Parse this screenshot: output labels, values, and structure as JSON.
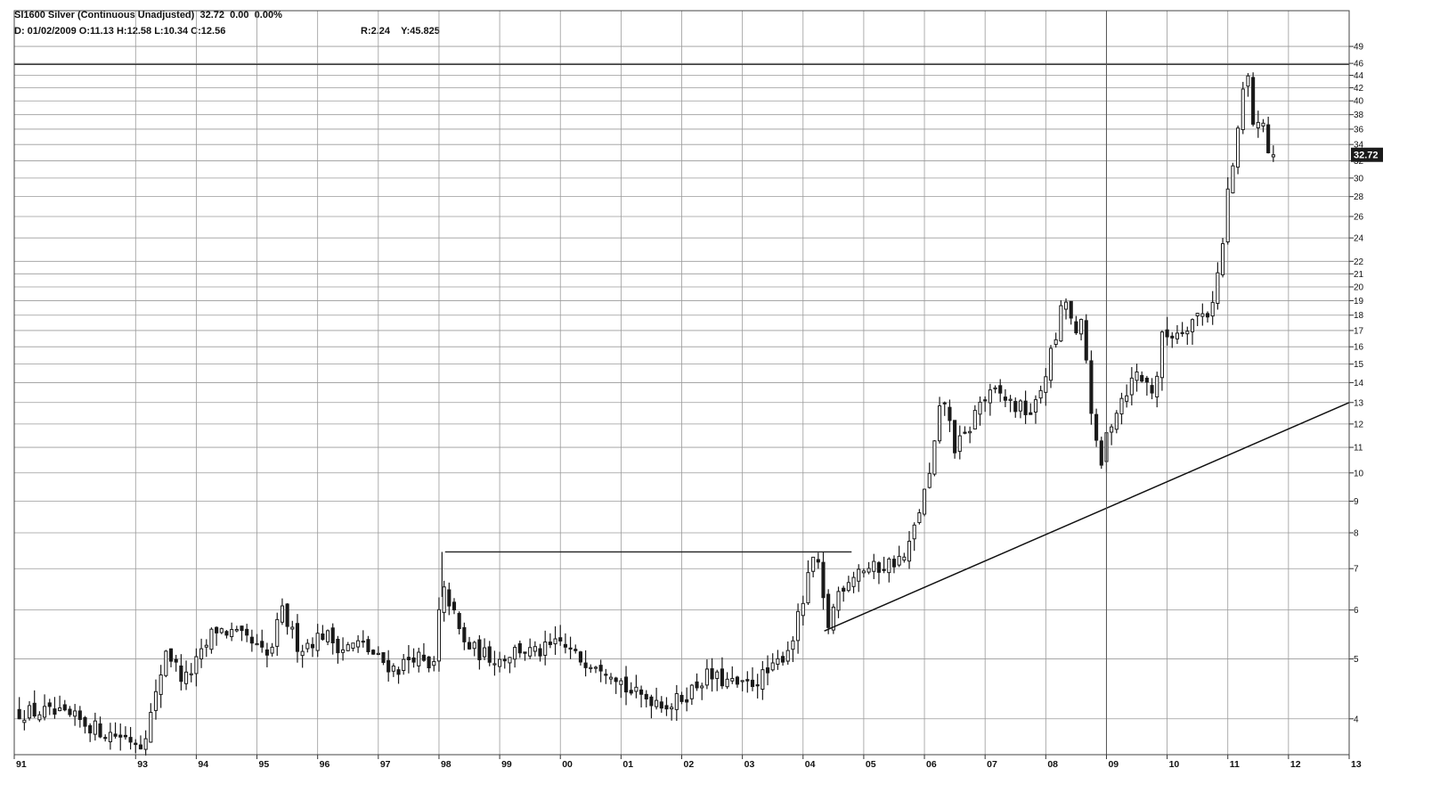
{
  "header": {
    "title": "SI1600 Silver (Continuous Unadjusted)",
    "last": "32.72",
    "change": "0.00",
    "change_pct": "0.00%",
    "date_label": "D: 01/02/2009",
    "open_label": "O:11.13",
    "high_label": "H:12.58",
    "low_label": "L:10.34",
    "close_label": "C:12.56",
    "r_label": "R:2.24",
    "y_label": "Y:45.825"
  },
  "colors": {
    "candle": "#1a1a1a",
    "grid": "#9a9a9a",
    "badge": "#1a1a1a",
    "background": "#ffffff"
  },
  "chart_data": {
    "type": "candlestick",
    "title": "SI1600 Silver (Continuous Unadjusted)",
    "scale": "log",
    "ylim": [
      3.5,
      50
    ],
    "xlim": [
      1991,
      2013
    ],
    "grid": true,
    "last_price": "32.72",
    "y_ticks": [
      "4",
      "5",
      "6",
      "7",
      "8",
      "9",
      "10",
      "11",
      "12",
      "13",
      "14",
      "15",
      "16",
      "17",
      "18",
      "19",
      "20",
      "21",
      "22",
      "24",
      "26",
      "28",
      "30",
      "32",
      "34",
      "36",
      "38",
      "40",
      "42",
      "44",
      "46",
      "49"
    ],
    "x_ticks": [
      "91",
      "93",
      "94",
      "95",
      "96",
      "97",
      "98",
      "99",
      "00",
      "01",
      "02",
      "03",
      "04",
      "05",
      "06",
      "07",
      "08",
      "09",
      "10",
      "11",
      "12",
      "13"
    ],
    "x_tick_years": [
      1991,
      1993,
      1994,
      1995,
      1996,
      1997,
      1998,
      1999,
      2000,
      2001,
      2002,
      2003,
      2004,
      2005,
      2006,
      2007,
      2008,
      2009,
      2010,
      2011,
      2012,
      2013
    ],
    "anchors": [
      [
        1991.0,
        4.1
      ],
      [
        1991.5,
        4.1
      ],
      [
        1992.0,
        4.0
      ],
      [
        1992.5,
        3.8
      ],
      [
        1992.8,
        3.75
      ],
      [
        1993.1,
        3.65
      ],
      [
        1993.3,
        4.2
      ],
      [
        1993.5,
        5.2
      ],
      [
        1993.8,
        4.6
      ],
      [
        1994.1,
        5.1
      ],
      [
        1994.3,
        5.6
      ],
      [
        1994.6,
        5.5
      ],
      [
        1994.9,
        5.3
      ],
      [
        1995.2,
        5.0
      ],
      [
        1995.4,
        6.0
      ],
      [
        1995.7,
        5.2
      ],
      [
        1996.1,
        5.5
      ],
      [
        1996.4,
        5.2
      ],
      [
        1996.7,
        5.3
      ],
      [
        1997.0,
        5.0
      ],
      [
        1997.3,
        4.8
      ],
      [
        1997.6,
        5.1
      ],
      [
        1997.9,
        4.7
      ],
      [
        1998.0,
        5.9
      ],
      [
        1998.1,
        6.5
      ],
      [
        1998.4,
        5.3
      ],
      [
        1998.7,
        5.1
      ],
      [
        1999.0,
        5.0
      ],
      [
        1999.3,
        5.2
      ],
      [
        1999.6,
        5.1
      ],
      [
        2000.0,
        5.3
      ],
      [
        2000.3,
        5.0
      ],
      [
        2000.6,
        4.95
      ],
      [
        2000.9,
        4.75
      ],
      [
        2001.1,
        4.45
      ],
      [
        2001.3,
        4.35
      ],
      [
        2001.6,
        4.3
      ],
      [
        2001.8,
        4.2
      ],
      [
        2002.1,
        4.4
      ],
      [
        2002.4,
        4.7
      ],
      [
        2002.7,
        4.6
      ],
      [
        2003.0,
        4.5
      ],
      [
        2003.2,
        4.6
      ],
      [
        2003.5,
        4.8
      ],
      [
        2003.8,
        5.3
      ],
      [
        2004.0,
        6.2
      ],
      [
        2004.2,
        7.5
      ],
      [
        2004.4,
        5.6
      ],
      [
        2004.6,
        6.5
      ],
      [
        2004.9,
        7.0
      ],
      [
        2005.2,
        7.0
      ],
      [
        2005.5,
        7.2
      ],
      [
        2005.7,
        7.3
      ],
      [
        2005.9,
        8.6
      ],
      [
        2006.1,
        10.0
      ],
      [
        2006.3,
        13.5
      ],
      [
        2006.5,
        11.0
      ],
      [
        2006.7,
        11.5
      ],
      [
        2006.9,
        13.0
      ],
      [
        2007.2,
        13.5
      ],
      [
        2007.5,
        12.8
      ],
      [
        2007.8,
        12.5
      ],
      [
        2007.9,
        13.5
      ],
      [
        2008.2,
        17.0
      ],
      [
        2008.3,
        19.5
      ],
      [
        2008.5,
        16.5
      ],
      [
        2008.6,
        17.5
      ],
      [
        2008.8,
        11.5
      ],
      [
        2008.9,
        10.0
      ],
      [
        2009.0,
        11.5
      ],
      [
        2009.2,
        13.0
      ],
      [
        2009.5,
        14.5
      ],
      [
        2009.8,
        13.5
      ],
      [
        2009.9,
        16.5
      ],
      [
        2010.2,
        17.0
      ],
      [
        2010.5,
        18.0
      ],
      [
        2010.7,
        18.2
      ],
      [
        2010.9,
        22.5
      ],
      [
        2011.0,
        28.5
      ],
      [
        2011.15,
        34.0
      ],
      [
        2011.3,
        46.0
      ],
      [
        2011.45,
        35.0
      ],
      [
        2011.6,
        38.0
      ],
      [
        2011.7,
        31.0
      ],
      [
        2011.75,
        32.72
      ]
    ],
    "annotations": [
      {
        "type": "horizontal_line",
        "from_x": 1998.1,
        "to_x": 2004.8,
        "y": 7.45
      },
      {
        "type": "vertical_line",
        "x": 1998.05,
        "from_y": 6.3,
        "to_y": 7.45
      },
      {
        "type": "trend_line",
        "from": [
          2004.35,
          5.55
        ],
        "to": [
          2013.0,
          13.0
        ]
      },
      {
        "type": "horizontal_line",
        "from_x": 1991.0,
        "to_x": 2013.0,
        "y": 45.825
      }
    ]
  }
}
